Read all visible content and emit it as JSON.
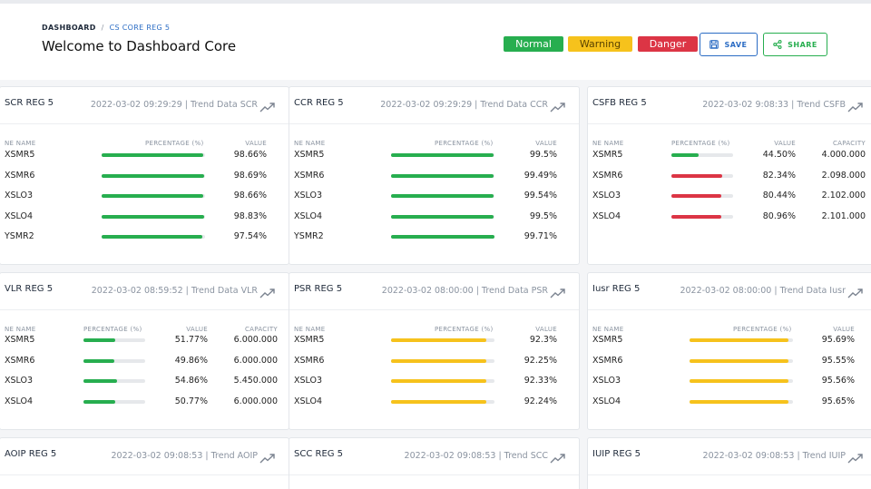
{
  "breadcrumb": {
    "home": "DASHBOARD",
    "separator": "/",
    "current": "CS CORE REG 5"
  },
  "page_title": "Welcome to Dashboard Core",
  "legend": {
    "normal": "Normal",
    "warning": "Warning",
    "danger": "Danger"
  },
  "actions": {
    "save": "SAVE",
    "share": "SHARE"
  },
  "colors": {
    "normal": "#27ae4f",
    "warning": "#f6c21c",
    "danger": "#dc3545",
    "accent": "#2b6cc4"
  },
  "headers": {
    "ne_name": "NE NAME",
    "percentage": "PERCENTAGE (%)",
    "value": "VALUE",
    "capacity": "CAPACITY"
  },
  "cards": [
    {
      "title": "SCR REG 5",
      "subtitle": "2022-03-02 09:29:29 | Trend Data SCR",
      "has_capacity": false,
      "rows": [
        {
          "ne": "XSMR5",
          "pct": 98.66,
          "value": "98.66%",
          "status": "normal"
        },
        {
          "ne": "XSMR6",
          "pct": 98.69,
          "value": "98.69%",
          "status": "normal"
        },
        {
          "ne": "XSLO3",
          "pct": 98.66,
          "value": "98.66%",
          "status": "normal"
        },
        {
          "ne": "XSLO4",
          "pct": 98.83,
          "value": "98.83%",
          "status": "normal"
        },
        {
          "ne": "YSMR2",
          "pct": 97.54,
          "value": "97.54%",
          "status": "normal"
        }
      ]
    },
    {
      "title": "CCR REG 5",
      "subtitle": "2022-03-02 09:29:29 | Trend Data CCR",
      "has_capacity": false,
      "rows": [
        {
          "ne": "XSMR5",
          "pct": 99.5,
          "value": "99.5%",
          "status": "normal"
        },
        {
          "ne": "XSMR6",
          "pct": 99.49,
          "value": "99.49%",
          "status": "normal"
        },
        {
          "ne": "XSLO3",
          "pct": 99.54,
          "value": "99.54%",
          "status": "normal"
        },
        {
          "ne": "XSLO4",
          "pct": 99.5,
          "value": "99.5%",
          "status": "normal"
        },
        {
          "ne": "YSMR2",
          "pct": 99.71,
          "value": "99.71%",
          "status": "normal"
        }
      ]
    },
    {
      "title": "CSFB REG 5",
      "subtitle": "2022-03-02 9:08:33 | Trend CSFB",
      "has_capacity": true,
      "rows": [
        {
          "ne": "XSMR5",
          "pct": 44.5,
          "value": "44.50%",
          "capacity": "4.000.000",
          "status": "normal"
        },
        {
          "ne": "XSMR6",
          "pct": 82.34,
          "value": "82.34%",
          "capacity": "2.098.000",
          "status": "danger"
        },
        {
          "ne": "XSLO3",
          "pct": 80.44,
          "value": "80.44%",
          "capacity": "2.102.000",
          "status": "danger"
        },
        {
          "ne": "XSLO4",
          "pct": 80.96,
          "value": "80.96%",
          "capacity": "2.101.000",
          "status": "danger"
        }
      ]
    },
    {
      "title": "VLR REG 5",
      "subtitle": "2022-03-02 08:59:52 | Trend Data VLR",
      "has_capacity": true,
      "rows": [
        {
          "ne": "XSMR5",
          "pct": 51.77,
          "value": "51.77%",
          "capacity": "6.000.000",
          "status": "normal"
        },
        {
          "ne": "XSMR6",
          "pct": 49.86,
          "value": "49.86%",
          "capacity": "6.000.000",
          "status": "normal"
        },
        {
          "ne": "XSLO3",
          "pct": 54.86,
          "value": "54.86%",
          "capacity": "5.450.000",
          "status": "normal"
        },
        {
          "ne": "XSLO4",
          "pct": 50.77,
          "value": "50.77%",
          "capacity": "6.000.000",
          "status": "normal"
        }
      ]
    },
    {
      "title": "PSR REG 5",
      "subtitle": "2022-03-02 08:00:00 | Trend Data PSR",
      "has_capacity": false,
      "rows": [
        {
          "ne": "XSMR5",
          "pct": 92.3,
          "value": "92.3%",
          "status": "warning"
        },
        {
          "ne": "XSMR6",
          "pct": 92.25,
          "value": "92.25%",
          "status": "warning"
        },
        {
          "ne": "XSLO3",
          "pct": 92.33,
          "value": "92.33%",
          "status": "warning"
        },
        {
          "ne": "XSLO4",
          "pct": 92.24,
          "value": "92.24%",
          "status": "warning"
        }
      ]
    },
    {
      "title": "Iusr REG 5",
      "subtitle": "2022-03-02 08:00:00 | Trend Data Iusr",
      "has_capacity": false,
      "rows": [
        {
          "ne": "XSMR5",
          "pct": 95.69,
          "value": "95.69%",
          "status": "warning"
        },
        {
          "ne": "XSMR6",
          "pct": 95.55,
          "value": "95.55%",
          "status": "warning"
        },
        {
          "ne": "XSLO3",
          "pct": 95.56,
          "value": "95.56%",
          "status": "warning"
        },
        {
          "ne": "XSLO4",
          "pct": 95.65,
          "value": "95.65%",
          "status": "warning"
        }
      ]
    },
    {
      "title": "AOIP REG 5",
      "subtitle": "2022-03-02 09:08:53 | Trend AOIP",
      "has_capacity": false,
      "rows": []
    },
    {
      "title": "SCC REG 5",
      "subtitle": "2022-03-02 09:08:53 | Trend SCC",
      "has_capacity": false,
      "rows": []
    },
    {
      "title": "IUIP REG 5",
      "subtitle": "2022-03-02 09:08:53 | Trend IUIP",
      "has_capacity": false,
      "rows": []
    }
  ],
  "icons": {
    "save": "save-icon",
    "share": "share-icon",
    "trend": "trend-up-icon"
  }
}
